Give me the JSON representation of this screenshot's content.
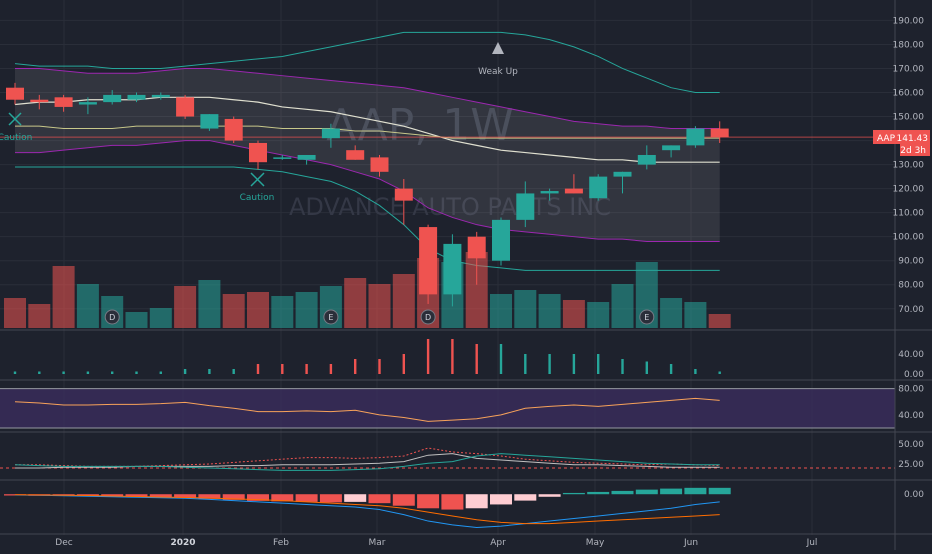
{
  "symbol": {
    "watermark": "AAP, 1W",
    "name": "ADVANCE AUTO PARTS INC"
  },
  "colors": {
    "up": "#26a69a",
    "down": "#ef5350",
    "bg": "#1e222d",
    "grid": "#2a2e39",
    "text": "#b2b5be",
    "rsi_band": "#3a2d5c"
  },
  "price_label": {
    "ticker": "AAP",
    "value": "141.43",
    "countdown": "2d 3h"
  },
  "x_axis": {
    "labels": [
      "Dec",
      "2020",
      "Feb",
      "Mar",
      "Apr",
      "May",
      "Jun",
      "Jul"
    ]
  },
  "annotations": {
    "caution_1": "Caution",
    "caution_2": "Caution",
    "weak_up": "Weak Up"
  },
  "event_markers": [
    "D",
    "E",
    "D",
    "E"
  ],
  "panels": {
    "osc_ticks": [
      "40.00",
      "0.00"
    ],
    "rsi_ticks": [
      "80.00",
      "40.00"
    ],
    "adx_ticks": [
      "50.00",
      "25.00"
    ],
    "macd_ticks": [
      "0.00"
    ]
  },
  "chart_data": [
    {
      "type": "candlestick",
      "title": "AAP, 1W",
      "y_ticks": [
        190,
        180,
        170,
        160,
        150,
        140,
        130,
        120,
        110,
        100,
        90,
        80,
        70
      ],
      "ylim": [
        62,
        196
      ],
      "candles": [
        {
          "o": 162,
          "h": 164,
          "l": 155,
          "c": 157
        },
        {
          "o": 157,
          "h": 159,
          "l": 153,
          "c": 156
        },
        {
          "o": 158,
          "h": 159,
          "l": 152,
          "c": 154
        },
        {
          "o": 155,
          "h": 158,
          "l": 151,
          "c": 156
        },
        {
          "o": 156,
          "h": 161,
          "l": 155,
          "c": 159
        },
        {
          "o": 157,
          "h": 160,
          "l": 156,
          "c": 159
        },
        {
          "o": 158,
          "h": 160,
          "l": 157,
          "c": 159
        },
        {
          "o": 158,
          "h": 159,
          "l": 149,
          "c": 150
        },
        {
          "o": 145,
          "h": 151,
          "l": 144,
          "c": 151
        },
        {
          "o": 149,
          "h": 150,
          "l": 139,
          "c": 140
        },
        {
          "o": 139,
          "h": 140,
          "l": 128,
          "c": 131
        },
        {
          "o": 133,
          "h": 134,
          "l": 132,
          "c": 133
        },
        {
          "o": 132,
          "h": 134,
          "l": 130,
          "c": 134
        },
        {
          "o": 141,
          "h": 147,
          "l": 137,
          "c": 145
        },
        {
          "o": 136,
          "h": 138,
          "l": 132,
          "c": 132
        },
        {
          "o": 133,
          "h": 134,
          "l": 125,
          "c": 127
        },
        {
          "o": 120,
          "h": 124,
          "l": 105,
          "c": 115
        },
        {
          "o": 104,
          "h": 105,
          "l": 72,
          "c": 76
        },
        {
          "o": 76,
          "h": 101,
          "l": 71,
          "c": 97
        },
        {
          "o": 100,
          "h": 102,
          "l": 80,
          "c": 91
        },
        {
          "o": 90,
          "h": 108,
          "l": 88,
          "c": 107
        },
        {
          "o": 107,
          "h": 123,
          "l": 104,
          "c": 118
        },
        {
          "o": 118,
          "h": 120,
          "l": 115,
          "c": 119
        },
        {
          "o": 120,
          "h": 126,
          "l": 118,
          "c": 118
        },
        {
          "o": 116,
          "h": 126,
          "l": 115,
          "c": 125
        },
        {
          "o": 125,
          "h": 127,
          "l": 118,
          "c": 127
        },
        {
          "o": 130,
          "h": 138,
          "l": 128,
          "c": 134
        },
        {
          "o": 136,
          "h": 138,
          "l": 133,
          "c": 138
        },
        {
          "o": 138,
          "h": 146,
          "l": 137,
          "c": 145
        },
        {
          "o": 145,
          "h": 148,
          "l": 139,
          "c": 141.43
        }
      ],
      "bb_upper": [
        170,
        170,
        169,
        168,
        168,
        168,
        169,
        170,
        170,
        169,
        168,
        167,
        166,
        165,
        164,
        163,
        162,
        160,
        158,
        156,
        154,
        152,
        150,
        148,
        147,
        146,
        146,
        145,
        145,
        145
      ],
      "bb_lower": [
        135,
        135,
        136,
        137,
        138,
        138,
        139,
        140,
        140,
        138,
        136,
        134,
        132,
        130,
        127,
        124,
        119,
        112,
        108,
        105,
        103,
        102,
        101,
        100,
        99,
        99,
        98,
        98,
        98,
        98
      ],
      "bb_basis": [
        155,
        156,
        156,
        157,
        157,
        157,
        158,
        158,
        158,
        157,
        156,
        154,
        153,
        152,
        150,
        148,
        146,
        143,
        140,
        138,
        136,
        135,
        134,
        133,
        132,
        132,
        131,
        131,
        131,
        131
      ],
      "sma_long": [
        146,
        146,
        145,
        145,
        145,
        146,
        146,
        146,
        146,
        146,
        146,
        145,
        145,
        145,
        144,
        144,
        143,
        142,
        141,
        141,
        141,
        141,
        141,
        141,
        141,
        141,
        141,
        141,
        141,
        141
      ],
      "outer_upper": [
        172,
        171,
        171,
        171,
        170,
        170,
        170,
        171,
        172,
        173,
        174,
        175,
        177,
        179,
        181,
        183,
        185,
        185,
        185,
        185,
        185,
        184,
        182,
        179,
        175,
        170,
        166,
        162,
        160,
        160
      ],
      "outer_lower": [
        129,
        129,
        129,
        129,
        129,
        129,
        129,
        129,
        129,
        129,
        128,
        127,
        125,
        123,
        119,
        113,
        105,
        95,
        90,
        88,
        87,
        86,
        86,
        86,
        86,
        86,
        86,
        86,
        86,
        86
      ],
      "volume": [
        15,
        12,
        31,
        22,
        16,
        8,
        10,
        21,
        24,
        17,
        18,
        16,
        18,
        21,
        25,
        22,
        27,
        35,
        33,
        38,
        17,
        19,
        17,
        14,
        13,
        22,
        33,
        15,
        13,
        7
      ],
      "volume_max": 40
    },
    {
      "type": "bar",
      "title": "Oscillator",
      "ylim": [
        0,
        80
      ],
      "values": [
        5,
        5,
        5,
        5,
        5,
        5,
        5,
        10,
        10,
        10,
        20,
        20,
        20,
        20,
        30,
        30,
        40,
        70,
        70,
        60,
        60,
        40,
        40,
        40,
        40,
        30,
        25,
        20,
        10,
        5
      ],
      "colors": [
        "up",
        "up",
        "up",
        "up",
        "up",
        "up",
        "up",
        "up",
        "up",
        "up",
        "down",
        "down",
        "down",
        "down",
        "down",
        "down",
        "down",
        "down",
        "down",
        "down",
        "up",
        "up",
        "up",
        "up",
        "up",
        "up",
        "up",
        "up",
        "up",
        "up"
      ]
    },
    {
      "type": "line",
      "title": "RSI",
      "ylim": [
        20,
        90
      ],
      "values": [
        60,
        58,
        55,
        55,
        56,
        56,
        57,
        59,
        54,
        50,
        45,
        45,
        46,
        45,
        47,
        40,
        36,
        30,
        32,
        34,
        40,
        50,
        53,
        55,
        53,
        56,
        59,
        62,
        65,
        62
      ]
    },
    {
      "type": "line",
      "title": "ADX/DMI",
      "ylim": [
        10,
        60
      ],
      "series": [
        {
          "values": [
            20,
            20,
            21,
            21,
            21,
            22,
            22,
            22,
            22,
            23,
            23,
            24,
            24,
            24,
            25,
            26,
            28,
            36,
            38,
            32,
            30,
            28,
            26,
            24,
            24,
            23,
            22,
            21,
            21,
            21
          ]
        },
        {
          "values": [
            24,
            24,
            23,
            22,
            22,
            22,
            23,
            24,
            25,
            27,
            29,
            31,
            33,
            33,
            32,
            33,
            35,
            45,
            40,
            38,
            35,
            31,
            29,
            27,
            26,
            25,
            24,
            25,
            24,
            23
          ]
        },
        {
          "values": [
            24,
            23,
            22,
            22,
            22,
            22,
            22,
            21,
            20,
            19,
            18,
            17,
            17,
            17,
            18,
            19,
            22,
            26,
            28,
            35,
            38,
            36,
            34,
            32,
            30,
            28,
            26,
            25,
            24,
            24
          ]
        }
      ]
    },
    {
      "type": "bar",
      "title": "MACD",
      "ylim": [
        -14,
        4
      ],
      "values": [
        -0.5,
        -0.6,
        -0.7,
        -0.9,
        -1.0,
        -1.1,
        -1.2,
        -1.5,
        -1.8,
        -2.2,
        -2.6,
        -2.8,
        -3.0,
        -3.2,
        -3.0,
        -3.5,
        -4.5,
        -5.5,
        -6.0,
        -5.5,
        -4.0,
        -2.5,
        -1.0,
        0.5,
        0.9,
        1.3,
        1.8,
        2.2,
        2.5,
        2.5
      ],
      "macd_line": [
        -0.3,
        -0.4,
        -0.6,
        -0.8,
        -1.0,
        -1.2,
        -1.4,
        -1.6,
        -2.0,
        -2.5,
        -3.0,
        -3.5,
        -4.0,
        -4.5,
        -5.0,
        -6.0,
        -8.0,
        -10.5,
        -12.0,
        -13.0,
        -12.5,
        -11.5,
        -10.5,
        -9.5,
        -8.5,
        -7.5,
        -6.5,
        -5.5,
        -4.0,
        -3.0
      ],
      "signal_line": [
        -0.2,
        -0.3,
        -0.4,
        -0.5,
        -0.7,
        -0.9,
        -1.1,
        -1.3,
        -1.5,
        -1.8,
        -2.1,
        -2.5,
        -3.0,
        -3.5,
        -4.0,
        -4.5,
        -5.5,
        -7.0,
        -8.5,
        -10.0,
        -11.0,
        -11.5,
        -11.5,
        -11.0,
        -10.5,
        -10.0,
        -9.5,
        -9.0,
        -8.5,
        -8.0
      ]
    }
  ]
}
